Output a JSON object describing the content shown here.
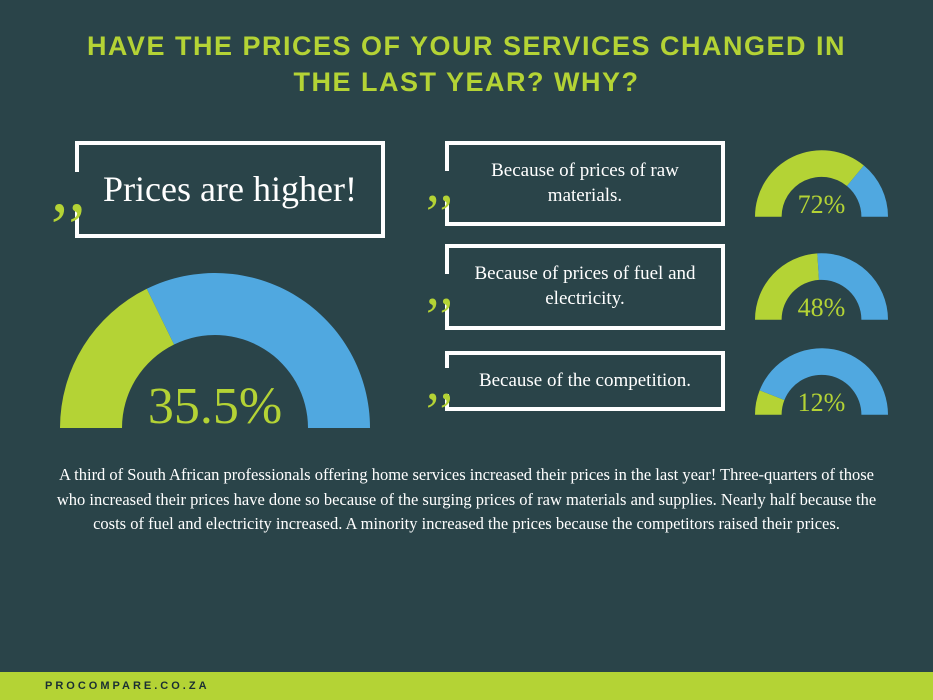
{
  "title": "HAVE THE PRICES OF YOUR SERVICES CHANGED IN THE LAST YEAR? WHY?",
  "colors": {
    "bg": "#2a4449",
    "accent": "#b4d335",
    "blue": "#50a8e0",
    "white": "#ffffff",
    "track": "#1f3438"
  },
  "main_quote": {
    "text": "Prices are higher!",
    "gauge": {
      "type": "semi-donut",
      "value_pct": 35.5,
      "label": "35.5%",
      "fill_color": "#b4d335",
      "remainder_color": "#50a8e0",
      "stroke_width_ratio": 0.35
    }
  },
  "reasons": [
    {
      "text": "Because of prices of raw materials.",
      "gauge": {
        "value_pct": 72,
        "label": "72%",
        "fill_color": "#b4d335",
        "remainder_color": "#50a8e0"
      }
    },
    {
      "text": "Because of prices of fuel and electricity.",
      "gauge": {
        "value_pct": 48,
        "label": "48%",
        "fill_color": "#b4d335",
        "remainder_color": "#50a8e0"
      }
    },
    {
      "text": "Because of the competition.",
      "gauge": {
        "value_pct": 12,
        "label": "12%",
        "fill_color": "#b4d335",
        "remainder_color": "#50a8e0"
      }
    }
  ],
  "body": "A third of South African professionals offering home services increased their prices in the last year! Three-quarters of those who increased their prices have done so because of the surging prices of raw materials and supplies. Nearly half because the costs of fuel and electricity increased. A minority increased the prices because the competitors raised their prices.",
  "footer": "PROCOMPARE.CO.ZA",
  "typography": {
    "title_fontsize": 27,
    "big_quote_fontsize": 36,
    "small_quote_fontsize": 19,
    "large_gauge_label_fontsize": 52,
    "small_gauge_label_fontsize": 26,
    "body_fontsize": 16.5,
    "footer_fontsize": 11
  }
}
